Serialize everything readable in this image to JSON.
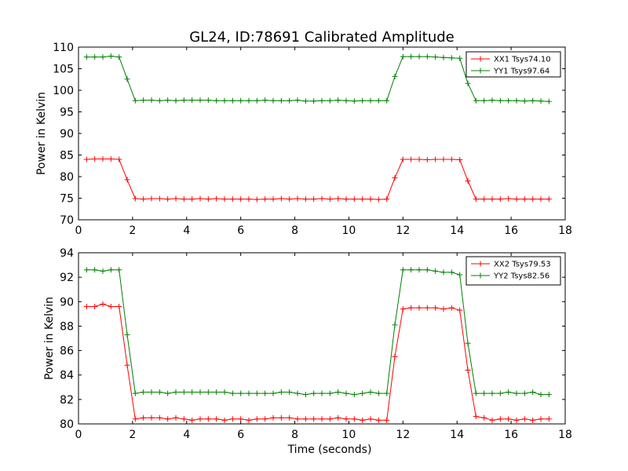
{
  "figure": {
    "title": "GL24, ID:78691 Calibrated Amplitude"
  },
  "chart_data": [
    {
      "type": "line",
      "xlabel": "",
      "ylabel": "Power in Kelvin",
      "xlim": [
        0,
        18
      ],
      "ylim": [
        70,
        110
      ],
      "xticks": [
        "0",
        "2",
        "4",
        "6",
        "8",
        "10",
        "12",
        "14",
        "16",
        "18"
      ],
      "yticks": [
        "70",
        "75",
        "80",
        "85",
        "90",
        "95",
        "100",
        "105",
        "110"
      ],
      "grid": false,
      "legend_position": "top-right",
      "x": [
        0.3,
        0.6,
        0.9,
        1.2,
        1.5,
        1.8,
        2.1,
        2.4,
        2.7,
        3.0,
        3.3,
        3.6,
        3.9,
        4.2,
        4.5,
        4.8,
        5.1,
        5.4,
        5.7,
        6.0,
        6.3,
        6.6,
        6.9,
        7.2,
        7.5,
        7.8,
        8.1,
        8.4,
        8.7,
        9.0,
        9.3,
        9.6,
        9.9,
        10.2,
        10.5,
        10.8,
        11.1,
        11.4,
        11.7,
        12.0,
        12.3,
        12.6,
        12.9,
        13.2,
        13.5,
        13.8,
        14.1,
        14.4,
        14.7,
        15.0,
        15.3,
        15.6,
        15.9,
        16.2,
        16.5,
        16.8,
        17.1,
        17.4
      ],
      "series": [
        {
          "name": "XX1 Tsys74.10",
          "color": "#ff0000",
          "values": [
            84.0,
            84.1,
            84.1,
            84.1,
            84.0,
            79.3,
            74.9,
            74.8,
            74.9,
            74.9,
            74.8,
            74.9,
            74.8,
            74.8,
            74.9,
            74.8,
            74.9,
            74.8,
            74.8,
            74.8,
            74.8,
            74.7,
            74.8,
            74.8,
            74.9,
            74.8,
            74.9,
            74.8,
            74.8,
            74.9,
            74.8,
            74.9,
            74.8,
            74.8,
            74.8,
            74.8,
            74.7,
            74.8,
            79.7,
            84.0,
            84.0,
            84.0,
            83.9,
            84.0,
            84.0,
            84.0,
            83.9,
            79.0,
            74.8,
            74.8,
            74.8,
            74.8,
            74.9,
            74.8,
            74.8,
            74.8,
            74.8,
            74.8
          ]
        },
        {
          "name": "YY1 Tsys97.64",
          "color": "#008000",
          "values": [
            107.7,
            107.7,
            107.7,
            107.9,
            107.7,
            102.6,
            97.6,
            97.7,
            97.7,
            97.6,
            97.7,
            97.6,
            97.7,
            97.7,
            97.7,
            97.7,
            97.6,
            97.6,
            97.6,
            97.6,
            97.6,
            97.6,
            97.7,
            97.6,
            97.6,
            97.6,
            97.7,
            97.5,
            97.5,
            97.6,
            97.6,
            97.7,
            97.6,
            97.5,
            97.6,
            97.6,
            97.6,
            97.6,
            103.2,
            107.8,
            107.8,
            107.8,
            107.8,
            107.7,
            107.6,
            107.5,
            107.4,
            101.6,
            97.6,
            97.6,
            97.7,
            97.6,
            97.6,
            97.6,
            97.5,
            97.6,
            97.5,
            97.4
          ]
        }
      ]
    },
    {
      "type": "line",
      "xlabel": "Time (seconds)",
      "ylabel": "Power in Kelvin",
      "xlim": [
        0,
        18
      ],
      "ylim": [
        80,
        94
      ],
      "xticks": [
        "0",
        "2",
        "4",
        "6",
        "8",
        "10",
        "12",
        "14",
        "16",
        "18"
      ],
      "yticks": [
        "80",
        "82",
        "84",
        "86",
        "88",
        "90",
        "92",
        "94"
      ],
      "grid": false,
      "legend_position": "top-right",
      "x": [
        0.3,
        0.6,
        0.9,
        1.2,
        1.5,
        1.8,
        2.1,
        2.4,
        2.7,
        3.0,
        3.3,
        3.6,
        3.9,
        4.2,
        4.5,
        4.8,
        5.1,
        5.4,
        5.7,
        6.0,
        6.3,
        6.6,
        6.9,
        7.2,
        7.5,
        7.8,
        8.1,
        8.4,
        8.7,
        9.0,
        9.3,
        9.6,
        9.9,
        10.2,
        10.5,
        10.8,
        11.1,
        11.4,
        11.7,
        12.0,
        12.3,
        12.6,
        12.9,
        13.2,
        13.5,
        13.8,
        14.1,
        14.4,
        14.7,
        15.0,
        15.3,
        15.6,
        15.9,
        16.2,
        16.5,
        16.8,
        17.1,
        17.4
      ],
      "series": [
        {
          "name": "XX2 Tsys79.53",
          "color": "#ff0000",
          "values": [
            89.6,
            89.6,
            89.8,
            89.6,
            89.6,
            84.8,
            80.4,
            80.5,
            80.5,
            80.5,
            80.4,
            80.5,
            80.4,
            80.3,
            80.4,
            80.4,
            80.4,
            80.3,
            80.4,
            80.4,
            80.3,
            80.4,
            80.4,
            80.5,
            80.5,
            80.5,
            80.4,
            80.4,
            80.4,
            80.4,
            80.4,
            80.5,
            80.4,
            80.4,
            80.3,
            80.4,
            80.3,
            80.3,
            85.5,
            89.4,
            89.5,
            89.5,
            89.5,
            89.5,
            89.4,
            89.5,
            89.3,
            84.4,
            80.6,
            80.5,
            80.3,
            80.4,
            80.4,
            80.3,
            80.4,
            80.3,
            80.4,
            80.4
          ]
        },
        {
          "name": "YY2 Tsys82.56",
          "color": "#008000",
          "values": [
            92.6,
            92.6,
            92.5,
            92.6,
            92.6,
            87.3,
            82.5,
            82.6,
            82.6,
            82.6,
            82.5,
            82.6,
            82.6,
            82.6,
            82.6,
            82.6,
            82.6,
            82.6,
            82.5,
            82.5,
            82.5,
            82.5,
            82.5,
            82.5,
            82.6,
            82.6,
            82.5,
            82.4,
            82.5,
            82.5,
            82.5,
            82.6,
            82.5,
            82.4,
            82.5,
            82.6,
            82.5,
            82.5,
            88.1,
            92.6,
            92.6,
            92.6,
            92.6,
            92.5,
            92.4,
            92.4,
            92.2,
            86.6,
            82.5,
            82.5,
            82.5,
            82.5,
            82.6,
            82.5,
            82.5,
            82.6,
            82.4,
            82.4
          ]
        }
      ]
    }
  ]
}
